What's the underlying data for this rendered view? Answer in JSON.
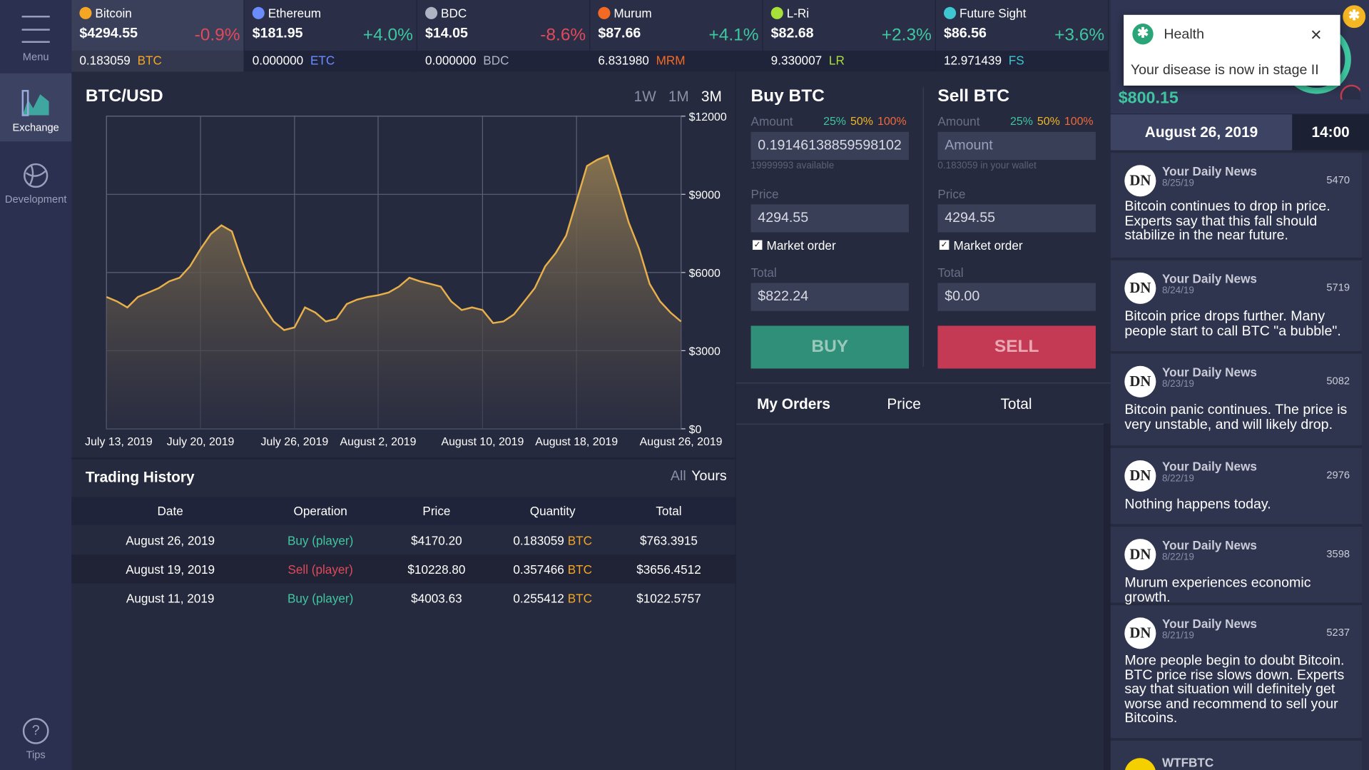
{
  "sidebar": {
    "menu": "Menu",
    "exchange": "Exchange",
    "development": "Development",
    "tips": "Tips"
  },
  "tickers": [
    {
      "name": "Bitcoin",
      "price": "$4294.55",
      "change": "-0.9%",
      "holding": "0.183059",
      "symbol": "BTC"
    },
    {
      "name": "Ethereum",
      "price": "$181.95",
      "change": "+4.0%",
      "holding": "0.000000",
      "symbol": "ETC"
    },
    {
      "name": "BDC",
      "price": "$14.05",
      "change": "-8.6%",
      "holding": "0.000000",
      "symbol": "BDC"
    },
    {
      "name": "Murum",
      "price": "$87.66",
      "change": "+4.1%",
      "holding": "6.831980",
      "symbol": "MRM"
    },
    {
      "name": "L-Ri",
      "price": "$82.68",
      "change": "+2.3%",
      "holding": "9.330007",
      "symbol": "LR"
    },
    {
      "name": "Future Sight",
      "price": "$86.56",
      "change": "+3.6%",
      "holding": "12.971439",
      "symbol": "FS"
    }
  ],
  "chart_data": {
    "type": "line",
    "title": "BTC/USD",
    "ranges": [
      "1W",
      "1M",
      "3M"
    ],
    "categories": [
      "July 13, 2019",
      null,
      null,
      null,
      null,
      null,
      null,
      null,
      null,
      "July 20, 2019",
      null,
      null,
      null,
      null,
      null,
      null,
      null,
      null,
      "July 26, 2019",
      null,
      null,
      null,
      null,
      null,
      null,
      null,
      "August 2, 2019",
      null,
      null,
      null,
      null,
      null,
      null,
      null,
      null,
      null,
      "August 10, 2019",
      null,
      null,
      null,
      null,
      null,
      null,
      null,
      null,
      "August 18, 2019",
      null,
      null,
      null,
      null,
      null,
      null,
      null,
      null,
      null,
      "August 26, 2019"
    ],
    "values": [
      5060,
      4890,
      4660,
      5060,
      5230,
      5400,
      5660,
      5800,
      6240,
      6900,
      7480,
      7810,
      7580,
      6400,
      5400,
      4730,
      4120,
      3790,
      3890,
      4660,
      4460,
      4120,
      4220,
      4790,
      4960,
      5060,
      5130,
      5230,
      5460,
      5800,
      5660,
      5560,
      5460,
      4890,
      4560,
      4660,
      4560,
      4060,
      4120,
      4390,
      4890,
      5400,
      6240,
      6740,
      7410,
      8750,
      10090,
      10330,
      10490,
      9250,
      7910,
      6900,
      5560,
      4890,
      4460,
      4120
    ],
    "color": "#e8b04a",
    "ylim": [
      0,
      12000
    ],
    "yticks": [
      {
        "value": 0,
        "label": "$0"
      },
      {
        "value": 3000,
        "label": "$3000"
      },
      {
        "value": 6000,
        "label": "$6000"
      },
      {
        "value": 9000,
        "label": "$9000"
      },
      {
        "value": 12000,
        "label": "$12000"
      }
    ],
    "grid": true
  },
  "buy": {
    "title": "Buy BTC",
    "amount_label": "Amount",
    "quick": [
      "25%",
      "50%",
      "100%"
    ],
    "amount": "0.19146138859598102",
    "available": "19999993 available",
    "price_label": "Price",
    "price": "4294.55",
    "market": "Market order",
    "total_label": "Total",
    "total": "$822.24",
    "button": "BUY"
  },
  "sell": {
    "title": "Sell BTC",
    "amount_label": "Amount",
    "quick": [
      "25%",
      "50%",
      "100%"
    ],
    "amount_placeholder": "Amount",
    "available": "0.183059 in your wallet",
    "price_label": "Price",
    "price": "4294.55",
    "market": "Market order",
    "total_label": "Total",
    "total": "$0.00",
    "button": "SELL"
  },
  "orders": {
    "title": "My Orders",
    "columns": [
      "Price",
      "Total"
    ]
  },
  "history": {
    "title": "Trading History",
    "filters": [
      "All",
      "Yours"
    ],
    "columns": [
      "Date",
      "Operation",
      "Price",
      "Quantity",
      "Total"
    ],
    "rows": [
      {
        "date": "August 26, 2019",
        "operation": "Buy (player)",
        "price": "$4170.20",
        "quantity": "0.183059",
        "symbol": "BTC",
        "total": "$763.3915"
      },
      {
        "date": "August 19, 2019",
        "operation": "Sell (player)",
        "price": "$10228.80",
        "quantity": "0.357466",
        "symbol": "BTC",
        "total": "$3656.4512"
      },
      {
        "date": "August 11, 2019",
        "operation": "Buy (player)",
        "price": "$4003.63",
        "quantity": "0.255412",
        "symbol": "BTC",
        "total": "$1022.5757"
      }
    ]
  },
  "notification": {
    "title": "Health",
    "message": "Your disease is now in stage II"
  },
  "wallet": {
    "balance": "$800.15"
  },
  "clock": {
    "date": "August 26, 2019",
    "time": "14:00"
  },
  "news": [
    {
      "source": "Your Daily News",
      "date": "8/25/19",
      "likes": "5470",
      "text": "Bitcoin continues to drop in price. Experts say that this fall should stabilize in the near future."
    },
    {
      "source": "Your Daily News",
      "date": "8/24/19",
      "likes": "5719",
      "text": "Bitcoin price drops further. Many people start to call BTC \"a bubble\"."
    },
    {
      "source": "Your Daily News",
      "date": "8/23/19",
      "likes": "5082",
      "text": "Bitcoin panic continues. The price is very unstable, and will likely drop."
    },
    {
      "source": "Your Daily News",
      "date": "8/22/19",
      "likes": "2976",
      "text": "Nothing happens today."
    },
    {
      "source": "Your Daily News",
      "date": "8/22/19",
      "likes": "3598",
      "text": "Murum experiences economic growth."
    },
    {
      "source": "Your Daily News",
      "date": "8/21/19",
      "likes": "5237",
      "text": "More people begin to doubt Bitcoin. BTC price rise slows down. Experts say that situation will definitely get worse and recommend to sell your Bitcoins."
    },
    {
      "source": "WTFBTC"
    }
  ]
}
